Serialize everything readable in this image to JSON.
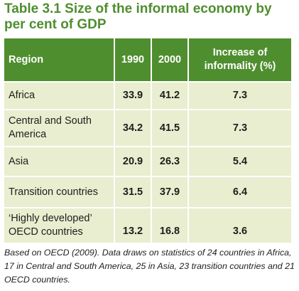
{
  "title": "Table 3.1  Size of the informal economy by per cent of GDP",
  "table": {
    "headers": {
      "region": "Region",
      "y1990": "1990",
      "y2000": "2000",
      "increase": "Increase of informality (%)"
    },
    "rows": [
      {
        "region": "Africa",
        "y1990": "33.9",
        "y2000": "41.2",
        "increase": "7.3"
      },
      {
        "region": "Central and South America",
        "y1990": "34.2",
        "y2000": "41.5",
        "increase": "7.3"
      },
      {
        "region": "Asia",
        "y1990": "20.9",
        "y2000": "26.3",
        "increase": "5.4"
      },
      {
        "region": "Transition countries",
        "y1990": "31.5",
        "y2000": "37.9",
        "increase": "6.4"
      },
      {
        "region": "‘Highly developed’ OECD countries",
        "y1990": "13.2",
        "y2000": "16.8",
        "increase": "3.6"
      }
    ]
  },
  "note": "Based on OECD (2009). Data draws on statistics of 24 countries in Africa, 17 in Central and South America, 25 in Asia, 23 transition countries and 21 OECD countries.",
  "colors": {
    "accent_green": "#4f8e2f",
    "row_background": "#e8eecf",
    "header_text": "#ffffff",
    "body_text": "#1e1e1e"
  }
}
